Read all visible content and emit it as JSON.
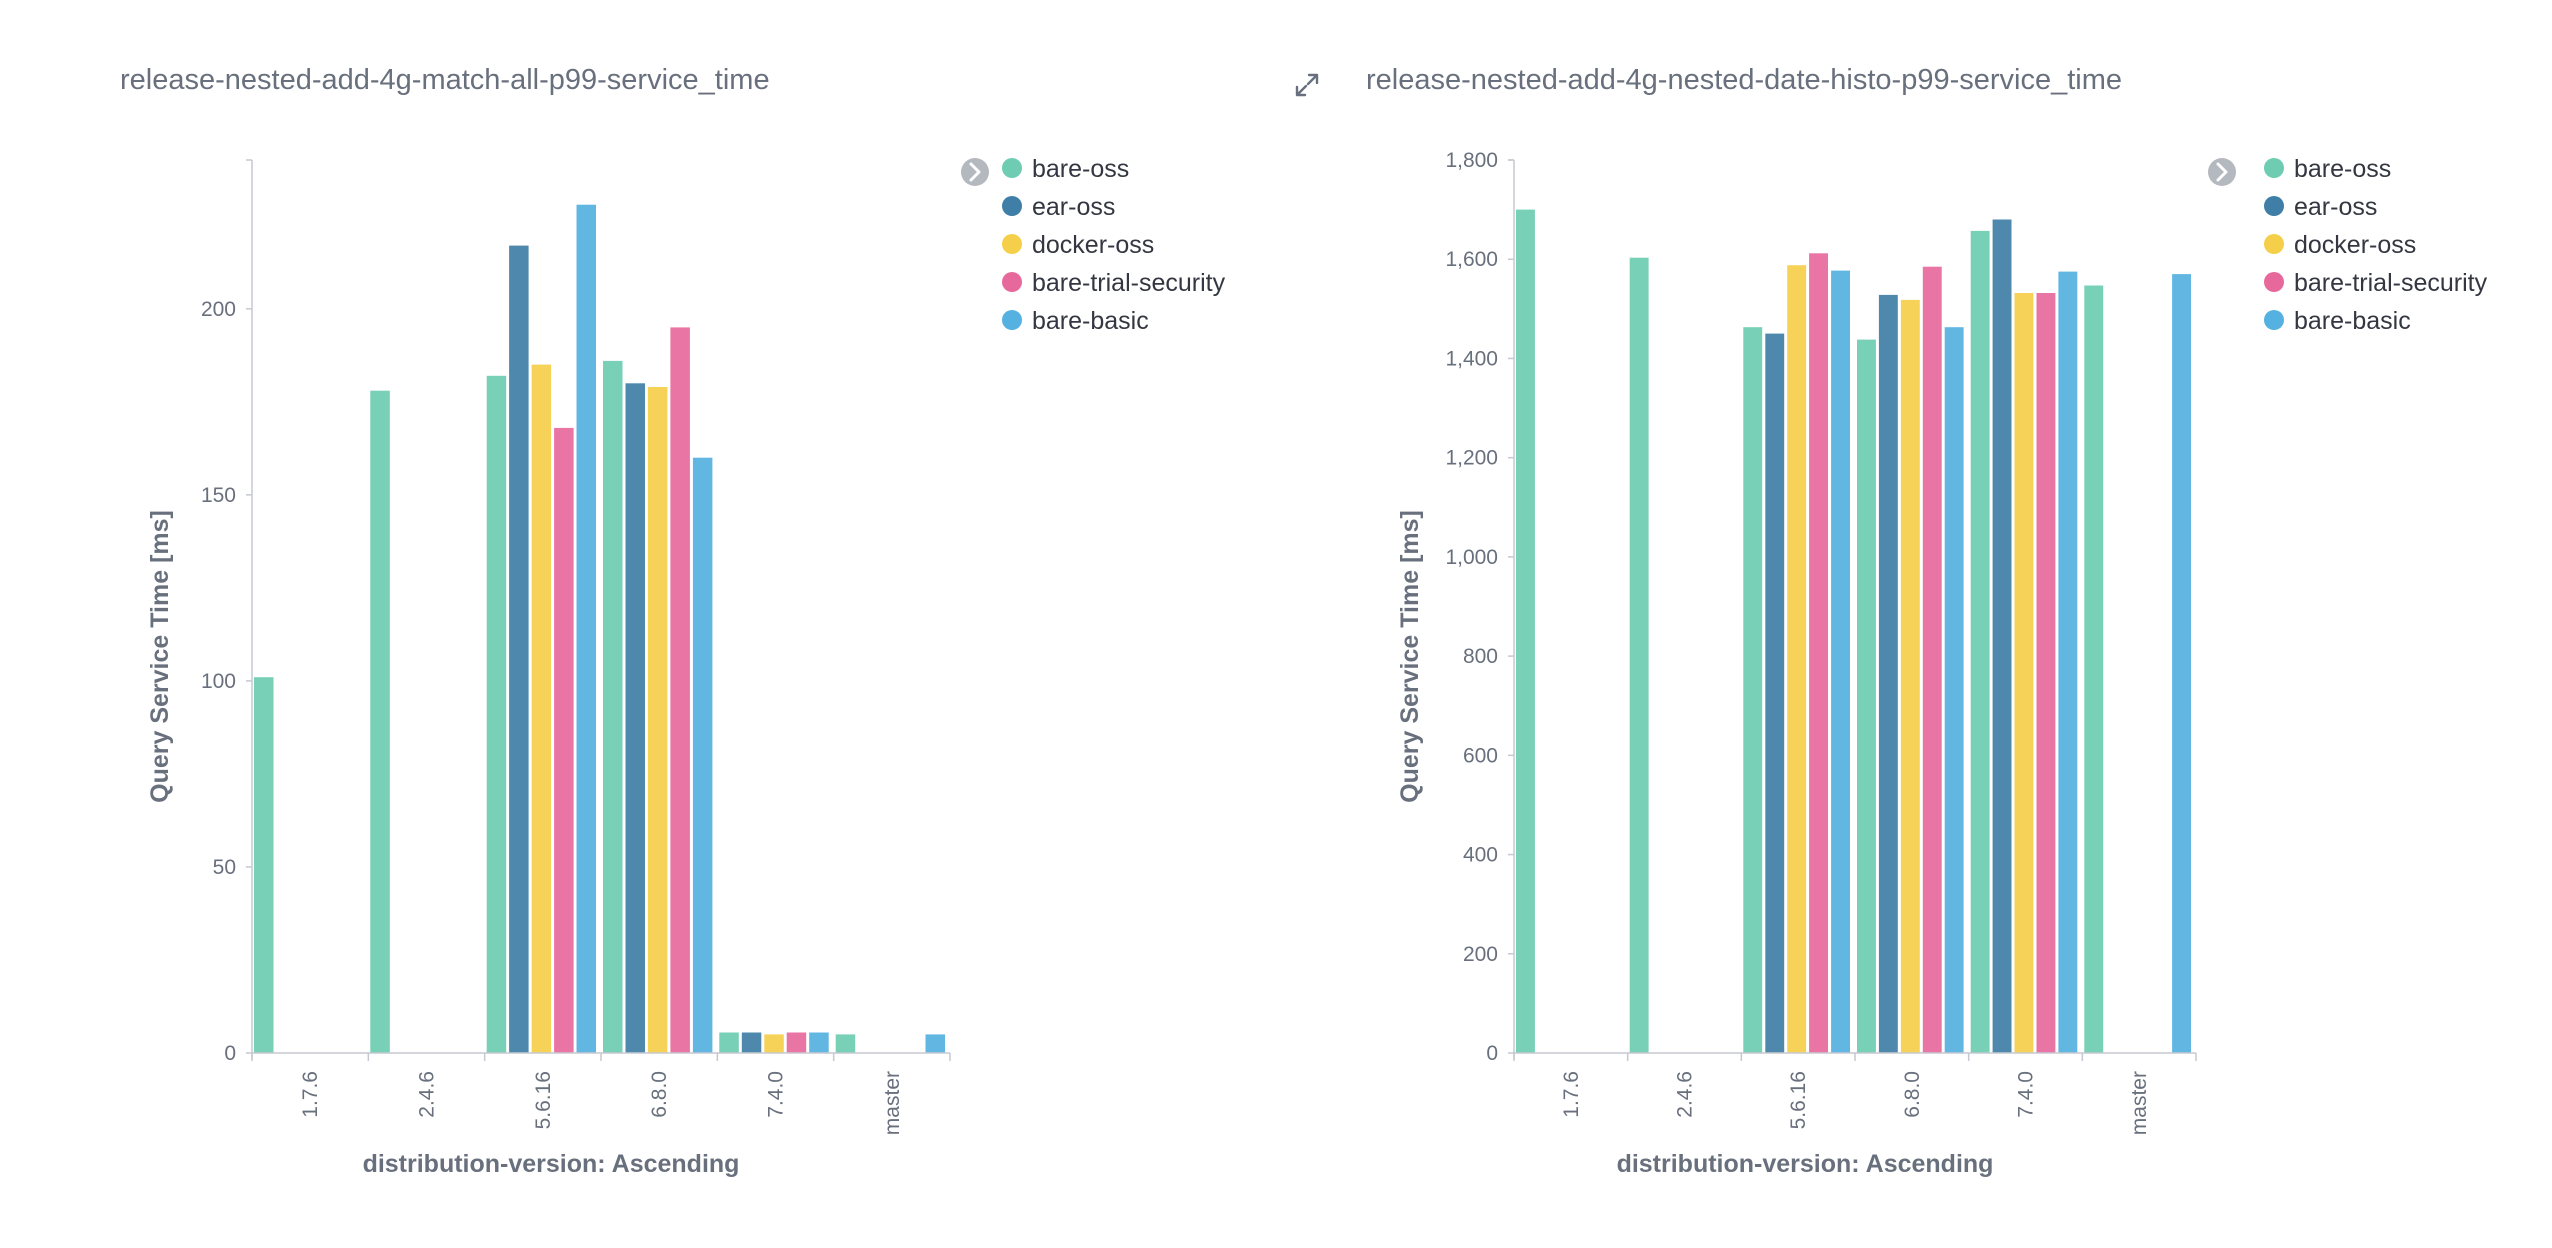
{
  "colors": {
    "bare-oss": "#6dccb1",
    "ear-oss": "#3f7ea6",
    "docker-oss": "#f5cf4a",
    "bare-trial-security": "#e7699c",
    "bare-basic": "#54b1e0"
  },
  "icons": {
    "expand": "expand-arrows-icon",
    "legend_toggle": "chevron-right-circle-icon"
  },
  "chart_data": [
    {
      "type": "bar",
      "title": "release-nested-add-4g-match-all-p99-service_time",
      "xlabel": "distribution-version: Ascending",
      "ylabel": "Query Service Time [ms]",
      "categories": [
        "1.7.6",
        "2.4.6",
        "5.6.16",
        "6.8.0",
        "7.4.0",
        "master"
      ],
      "ylim": [
        0,
        240
      ],
      "yticks": [
        0,
        50,
        100,
        150,
        200
      ],
      "ytick_labels": [
        "0",
        "50",
        "100",
        "150",
        "200"
      ],
      "legend": [
        "bare-oss",
        "ear-oss",
        "docker-oss",
        "bare-trial-security",
        "bare-basic"
      ],
      "series": [
        {
          "name": "bare-oss",
          "values": [
            101,
            178,
            182,
            186,
            5.5,
            5
          ]
        },
        {
          "name": "ear-oss",
          "values": [
            null,
            null,
            217,
            180,
            5.5,
            null
          ]
        },
        {
          "name": "docker-oss",
          "values": [
            null,
            null,
            185,
            179,
            5,
            null
          ]
        },
        {
          "name": "bare-trial-security",
          "values": [
            null,
            null,
            168,
            195,
            5.5,
            null
          ]
        },
        {
          "name": "bare-basic",
          "values": [
            null,
            null,
            228,
            160,
            5.5,
            5
          ]
        }
      ]
    },
    {
      "type": "bar",
      "title": "release-nested-add-4g-nested-date-histo-p99-service_time",
      "xlabel": "distribution-version: Ascending",
      "ylabel": "Query Service Time [ms]",
      "categories": [
        "1.7.6",
        "2.4.6",
        "5.6.16",
        "6.8.0",
        "7.4.0",
        "master"
      ],
      "ylim": [
        0,
        1800
      ],
      "yticks": [
        0,
        200,
        400,
        600,
        800,
        1000,
        1200,
        1400,
        1600,
        1800
      ],
      "ytick_labels": [
        "0",
        "200",
        "400",
        "600",
        "800",
        "1,000",
        "1,200",
        "1,400",
        "1,600",
        "1,800"
      ],
      "legend": [
        "bare-oss",
        "ear-oss",
        "docker-oss",
        "bare-trial-security",
        "bare-basic"
      ],
      "series": [
        {
          "name": "bare-oss",
          "values": [
            1700,
            1603,
            1463,
            1438,
            1657,
            1547
          ]
        },
        {
          "name": "ear-oss",
          "values": [
            null,
            null,
            1450,
            1528,
            1680,
            null
          ]
        },
        {
          "name": "docker-oss",
          "values": [
            null,
            null,
            1588,
            1518,
            1532,
            null
          ]
        },
        {
          "name": "bare-trial-security",
          "values": [
            null,
            null,
            1612,
            1585,
            1532,
            null
          ]
        },
        {
          "name": "bare-basic",
          "values": [
            null,
            null,
            1577,
            1463,
            1575,
            1570
          ]
        }
      ]
    }
  ]
}
